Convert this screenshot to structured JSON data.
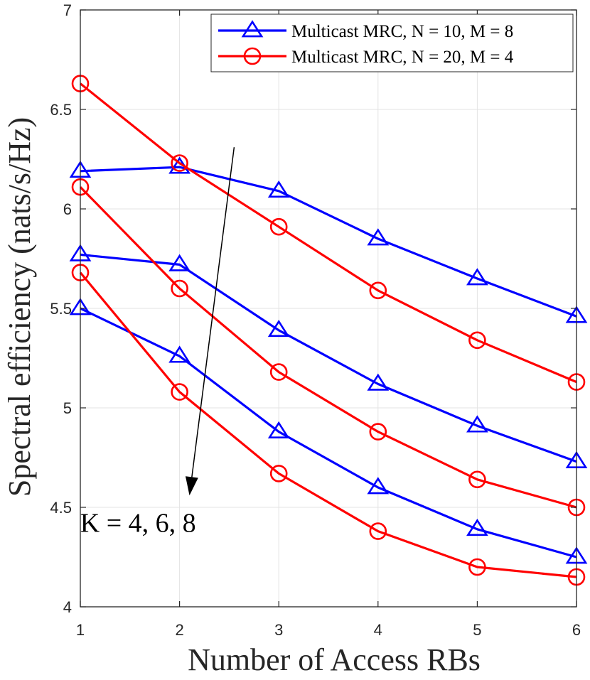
{
  "chart_data": {
    "type": "line",
    "title": "",
    "xlabel": "Number of Access RBs",
    "ylabel": "Spectral efficiency (nats/s/Hz)",
    "x": [
      1,
      2,
      3,
      4,
      5,
      6
    ],
    "xlim": [
      1,
      6
    ],
    "ylim": [
      4,
      7
    ],
    "xticks": [
      "1",
      "2",
      "3",
      "4",
      "5",
      "6"
    ],
    "yticks": [
      "4",
      "4.5",
      "5",
      "5.5",
      "6",
      "6.5",
      "7"
    ],
    "grid": true,
    "legend_location": "top-right",
    "legend": [
      {
        "label": "Multicast MRC, N = 10, M = 8",
        "color": "#0000ff",
        "marker": "triangle"
      },
      {
        "label": "Multicast MRC, N = 20, M = 4",
        "color": "#ff0000",
        "marker": "circle"
      }
    ],
    "series": [
      {
        "name": "Multicast MRC, N = 10, M = 8 (K = 4)",
        "group": 0,
        "values": [
          6.19,
          6.21,
          6.09,
          5.85,
          5.65,
          5.46
        ]
      },
      {
        "name": "Multicast MRC, N = 10, M = 8 (K = 6)",
        "group": 0,
        "values": [
          5.77,
          5.72,
          5.39,
          5.12,
          4.91,
          4.73
        ]
      },
      {
        "name": "Multicast MRC, N = 10, M = 8 (K = 8)",
        "group": 0,
        "values": [
          5.5,
          5.26,
          4.88,
          4.6,
          4.39,
          4.25
        ]
      },
      {
        "name": "Multicast MRC, N = 20, M = 4 (K = 4)",
        "group": 1,
        "values": [
          6.63,
          6.23,
          5.91,
          5.59,
          5.34,
          5.13
        ]
      },
      {
        "name": "Multicast MRC, N = 20, M = 4 (K = 6)",
        "group": 1,
        "values": [
          6.11,
          5.6,
          5.18,
          4.88,
          4.64,
          4.5
        ]
      },
      {
        "name": "Multicast MRC, N = 20, M = 4 (K = 8)",
        "group": 1,
        "values": [
          5.68,
          5.08,
          4.67,
          4.38,
          4.2,
          4.15
        ]
      }
    ],
    "annotation": {
      "text": "K = 4, 6, 8",
      "arrow_from": [
        2.55,
        6.31
      ],
      "arrow_to": [
        2.1,
        4.56
      ],
      "text_at": [
        1.5,
        4.42
      ]
    }
  }
}
